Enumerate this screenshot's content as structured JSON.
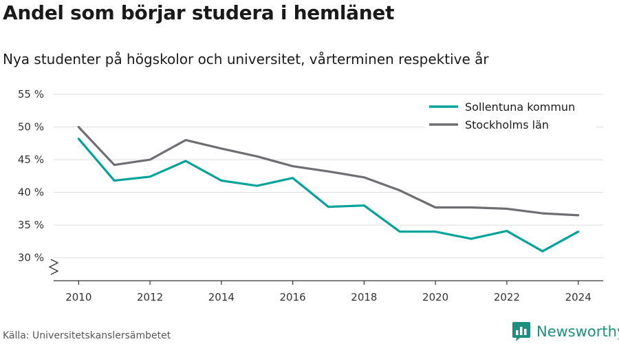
{
  "title": "Andel som börjar studera i hemlänet",
  "subtitle": "Nya studenter på högskolor och universitet, vårterminen respektive år",
  "source": "Källa: Universitetskanslersämbetet",
  "brand": {
    "name": "Newsworthy",
    "color": "#1e8f7e",
    "icon": "bar-chart-logo-icon"
  },
  "chart_data": {
    "type": "line",
    "title": "Andel som börjar studera i hemlänet",
    "subtitle": "Nya studenter på högskolor och universitet, vårterminen respektive år",
    "xlabel": "",
    "ylabel": "",
    "x": [
      2010,
      2011,
      2012,
      2013,
      2014,
      2015,
      2016,
      2017,
      2018,
      2019,
      2020,
      2021,
      2022,
      2023,
      2024
    ],
    "x_ticks": [
      2010,
      2012,
      2014,
      2016,
      2018,
      2020,
      2022,
      2024
    ],
    "y_ticks": [
      30,
      35,
      40,
      45,
      50,
      55
    ],
    "y_tick_labels": [
      "30 %",
      "35 %",
      "40 %",
      "45 %",
      "50 %",
      "55 %"
    ],
    "ylim": [
      26.5,
      57
    ],
    "xlim": [
      2009.3,
      2024.7
    ],
    "y_axis_break": true,
    "grid": true,
    "legend_position": "top-right",
    "series": [
      {
        "name": "Sollentuna kommun",
        "color": "#00a39a",
        "values": [
          48.2,
          41.8,
          42.4,
          44.8,
          41.8,
          41.0,
          42.2,
          37.8,
          38.0,
          34.0,
          34.0,
          32.9,
          34.1,
          31.0,
          34.0
        ]
      },
      {
        "name": "Stockholms län",
        "color": "#6e6d72",
        "values": [
          50.0,
          44.2,
          45.0,
          48.0,
          46.7,
          45.5,
          44.0,
          43.2,
          42.3,
          40.3,
          37.7,
          37.7,
          37.5,
          36.8,
          36.5
        ]
      }
    ]
  }
}
